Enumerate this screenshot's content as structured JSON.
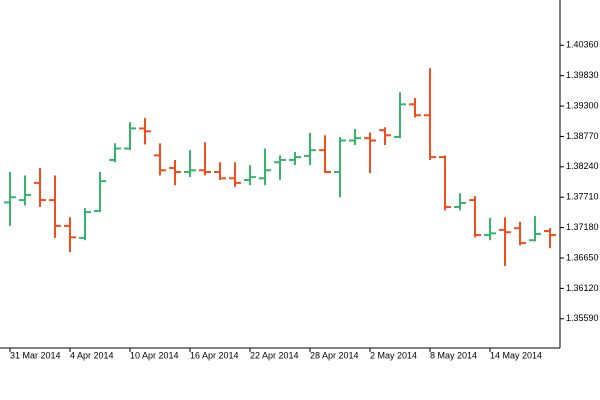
{
  "chart_data": {
    "type": "ohlc",
    "categories": [
      "31 Mar 2014",
      null,
      null,
      null,
      "4 Apr 2014",
      null,
      null,
      null,
      "10 Apr 2014",
      null,
      null,
      null,
      "16 Apr 2014",
      null,
      null,
      null,
      "22 Apr 2014",
      null,
      null,
      null,
      "28 Apr 2014",
      null,
      null,
      null,
      "2 May 2014",
      null,
      null,
      null,
      "8 May 2014",
      null,
      null,
      null,
      "14 May 2014",
      null,
      null,
      null,
      null
    ],
    "open": [
      1.3762,
      1.3766,
      1.3796,
      1.3766,
      1.3721,
      1.37,
      1.3747,
      1.3836,
      1.3856,
      1.3891,
      1.3844,
      1.3822,
      1.3815,
      1.3818,
      1.3815,
      1.3804,
      1.3801,
      1.3804,
      1.3832,
      1.3836,
      1.3843,
      1.3853,
      1.3815,
      1.387,
      1.3874,
      1.3888,
      1.3876,
      1.3933,
      1.3914,
      1.3841,
      1.3754,
      1.3766,
      1.3705,
      1.3714,
      1.3717,
      1.3696,
      1.3712
    ],
    "high": [
      1.3815,
      1.3809,
      1.3822,
      1.3809,
      1.3736,
      1.3752,
      1.3815,
      1.3865,
      1.3902,
      1.3909,
      1.3865,
      1.3836,
      1.3853,
      1.3867,
      1.3832,
      1.3832,
      1.3827,
      1.3856,
      1.3844,
      1.385,
      1.3883,
      1.3879,
      1.3876,
      1.389,
      1.3884,
      1.3893,
      1.3954,
      1.3944,
      1.3996,
      1.3844,
      1.3778,
      1.3773,
      1.3735,
      1.3736,
      1.3728,
      1.3738,
      1.3717
    ],
    "low": [
      1.3721,
      1.3757,
      1.3754,
      1.37,
      1.3675,
      1.3696,
      1.3745,
      1.3832,
      1.3853,
      1.3863,
      1.3809,
      1.3792,
      1.3806,
      1.3809,
      1.3801,
      1.3789,
      1.3792,
      1.3792,
      1.3801,
      1.3827,
      1.3827,
      1.3813,
      1.3771,
      1.3862,
      1.3813,
      1.3862,
      1.3874,
      1.391,
      1.3836,
      1.3748,
      1.3748,
      1.3701,
      1.3696,
      1.3651,
      1.3687,
      1.3694,
      1.3682
    ],
    "close": [
      1.3771,
      1.3775,
      1.3766,
      1.3721,
      1.3701,
      1.3745,
      1.3799,
      1.3856,
      1.3891,
      1.3886,
      1.3818,
      1.3815,
      1.3818,
      1.3815,
      1.3804,
      1.3796,
      1.3806,
      1.3818,
      1.3836,
      1.3841,
      1.3853,
      1.3815,
      1.387,
      1.3874,
      1.387,
      1.3879,
      1.3933,
      1.3914,
      1.3841,
      1.3754,
      1.3761,
      1.3705,
      1.3708,
      1.371,
      1.3691,
      1.3707,
      1.3705
    ],
    "up_color": "#35b46c",
    "down_color": "#f04e1c",
    "ylim": [
      1.3508,
      1.4115
    ],
    "yticks": [
      {
        "value": 1.4036,
        "label": "1.40360"
      },
      {
        "value": 1.3983,
        "label": "1.39830"
      },
      {
        "value": 1.393,
        "label": "1.39300"
      },
      {
        "value": 1.3877,
        "label": "1.38770"
      },
      {
        "value": 1.3824,
        "label": "1.38240"
      },
      {
        "value": 1.3771,
        "label": "1.37710"
      },
      {
        "value": 1.3718,
        "label": "1.37180"
      },
      {
        "value": 1.3665,
        "label": "1.36650"
      },
      {
        "value": 1.3612,
        "label": "1.36120"
      },
      {
        "value": 1.3559,
        "label": "1.35590"
      }
    ],
    "grid": false
  }
}
